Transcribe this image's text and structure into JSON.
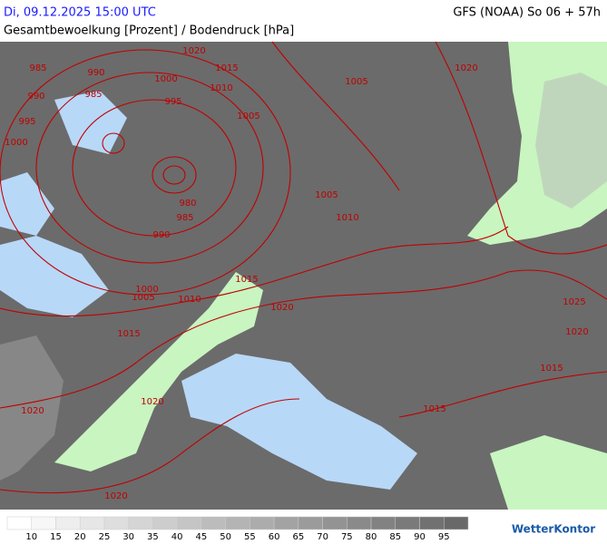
{
  "header": {
    "datetime": "Di, 09.12.2025 15:00 UTC",
    "model": "GFS (NOAA) So 06 + 57h",
    "subtitle": "Gesamtbewoelkung [Prozent] / Bodendruck [hPa]"
  },
  "isobar_labels": [
    "985",
    "990",
    "1000",
    "1015",
    "1020",
    "1010",
    "985",
    "995",
    "990",
    "995",
    "1005",
    "1000",
    "1020",
    "1005",
    "980",
    "985",
    "990",
    "1005",
    "1010",
    "1015",
    "1000",
    "1005",
    "1010",
    "1020",
    "1025",
    "1020",
    "1015",
    "1015",
    "1020",
    "1015",
    "1020",
    "1020"
  ],
  "legend": {
    "labels": [
      "10",
      "15",
      "20",
      "25",
      "30",
      "35",
      "40",
      "45",
      "50",
      "55",
      "60",
      "65",
      "70",
      "75",
      "80",
      "85",
      "90",
      "95"
    ]
  },
  "logo": "WetterKontor"
}
